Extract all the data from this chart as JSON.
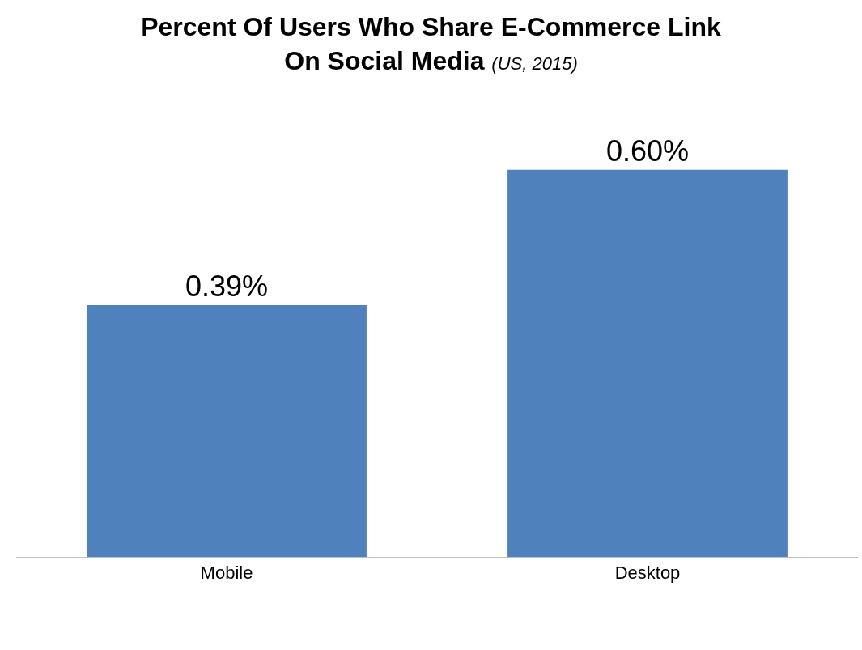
{
  "chart_data": {
    "type": "bar",
    "title": "Percent Of Users Who Share E-Commerce Link On Social Media",
    "subtitle": "(US, 2015)",
    "categories": [
      "Mobile",
      "Desktop"
    ],
    "values": [
      0.39,
      0.6
    ],
    "value_labels": [
      "0.39%",
      "0.60%"
    ],
    "color": "#4f81bd",
    "grid": false,
    "legend": false
  }
}
